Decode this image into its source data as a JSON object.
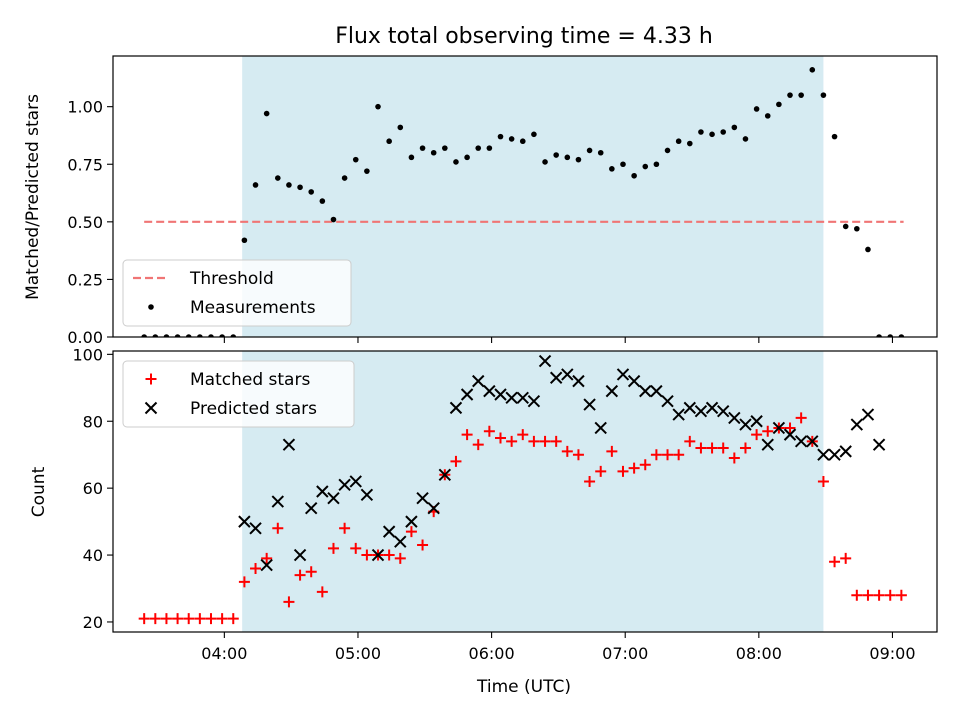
{
  "chart_data": [
    {
      "type": "scatter",
      "title": "Flux total observing time = 4.33 h",
      "xlabel": "",
      "ylabel": "Matched/Predicted stars",
      "ylim": [
        0,
        1.22
      ],
      "xlim": [
        "03:10",
        "09:20"
      ],
      "yticks": [
        "0.00",
        "0.25",
        "0.50",
        "0.75",
        "1.00"
      ],
      "shaded_interval": [
        "04:08",
        "08:29"
      ],
      "grid": false,
      "legend_position": "lower-left",
      "series": [
        {
          "name": "Threshold",
          "style": "dashed-line",
          "color": "#f07575",
          "x": [
            "03:24",
            "09:05"
          ],
          "values": [
            0.5,
            0.5
          ]
        },
        {
          "name": "Measurements",
          "style": "dot",
          "color": "#000000",
          "x": [
            "03:24",
            "03:29",
            "03:34",
            "03:39",
            "03:44",
            "03:49",
            "03:54",
            "03:59",
            "04:04",
            "04:09",
            "04:14",
            "04:19",
            "04:24",
            "04:29",
            "04:34",
            "04:39",
            "04:44",
            "04:49",
            "04:54",
            "04:59",
            "05:04",
            "05:09",
            "05:14",
            "05:19",
            "05:24",
            "05:29",
            "05:34",
            "05:39",
            "05:44",
            "05:49",
            "05:54",
            "05:59",
            "06:04",
            "06:09",
            "06:14",
            "06:19",
            "06:24",
            "06:29",
            "06:34",
            "06:39",
            "06:44",
            "06:49",
            "06:54",
            "06:59",
            "07:04",
            "07:09",
            "07:14",
            "07:19",
            "07:24",
            "07:29",
            "07:34",
            "07:39",
            "07:44",
            "07:49",
            "07:54",
            "07:59",
            "08:04",
            "08:09",
            "08:14",
            "08:19",
            "08:24",
            "08:29",
            "08:34",
            "08:39",
            "08:44",
            "08:49",
            "08:54",
            "08:59",
            "09:04"
          ],
          "values": [
            0,
            0,
            0,
            0,
            0,
            0,
            0,
            0,
            0,
            0.42,
            0.66,
            0.97,
            0.69,
            0.66,
            0.65,
            0.63,
            0.59,
            0.51,
            0.69,
            0.77,
            0.72,
            1.0,
            0.85,
            0.91,
            0.78,
            0.82,
            0.8,
            0.82,
            0.76,
            0.78,
            0.82,
            0.82,
            0.87,
            0.86,
            0.85,
            0.88,
            0.76,
            0.79,
            0.78,
            0.77,
            0.81,
            0.8,
            0.73,
            0.75,
            0.7,
            0.74,
            0.75,
            0.81,
            0.85,
            0.84,
            0.89,
            0.88,
            0.89,
            0.91,
            0.86,
            0.99,
            0.96,
            1.01,
            1.05,
            1.05,
            1.16,
            1.05,
            0.87,
            0.48,
            0.47,
            0.38,
            0,
            0,
            0
          ]
        }
      ]
    },
    {
      "type": "scatter",
      "title": "",
      "xlabel": "Time (UTC)",
      "ylabel": "Count",
      "ylim": [
        17,
        101
      ],
      "xlim": [
        "03:10",
        "09:20"
      ],
      "xticks": [
        "04:00",
        "05:00",
        "06:00",
        "07:00",
        "08:00",
        "09:00"
      ],
      "yticks": [
        "20",
        "40",
        "60",
        "80",
        "100"
      ],
      "shaded_interval": [
        "04:08",
        "08:29"
      ],
      "grid": false,
      "legend_position": "upper-left",
      "series": [
        {
          "name": "Matched stars",
          "style": "plus",
          "color": "#ff0000",
          "x": [
            "03:24",
            "03:29",
            "03:34",
            "03:39",
            "03:44",
            "03:49",
            "03:54",
            "03:59",
            "04:04",
            "04:09",
            "04:14",
            "04:19",
            "04:24",
            "04:29",
            "04:34",
            "04:39",
            "04:44",
            "04:49",
            "04:54",
            "04:59",
            "05:04",
            "05:09",
            "05:14",
            "05:19",
            "05:24",
            "05:29",
            "05:34",
            "05:39",
            "05:44",
            "05:49",
            "05:54",
            "05:59",
            "06:04",
            "06:09",
            "06:14",
            "06:19",
            "06:24",
            "06:29",
            "06:34",
            "06:39",
            "06:44",
            "06:49",
            "06:54",
            "06:59",
            "07:04",
            "07:09",
            "07:14",
            "07:19",
            "07:24",
            "07:29",
            "07:34",
            "07:39",
            "07:44",
            "07:49",
            "07:54",
            "07:59",
            "08:04",
            "08:09",
            "08:14",
            "08:19",
            "08:24",
            "08:29",
            "08:34",
            "08:39",
            "08:44",
            "08:49",
            "08:54",
            "08:59",
            "09:04"
          ],
          "values": [
            21,
            21,
            21,
            21,
            21,
            21,
            21,
            21,
            21,
            32,
            36,
            39,
            48,
            26,
            34,
            35,
            29,
            42,
            48,
            42,
            40,
            40,
            40,
            39,
            47,
            43,
            53,
            64,
            68,
            76,
            73,
            77,
            75,
            74,
            76,
            74,
            74,
            74,
            71,
            70,
            62,
            65,
            71,
            65,
            66,
            67,
            70,
            70,
            70,
            74,
            72,
            72,
            72,
            69,
            72,
            76,
            77,
            78,
            78,
            81,
            74,
            62,
            38,
            39,
            28,
            28,
            28,
            28,
            28
          ]
        },
        {
          "name": "Predicted stars",
          "style": "x",
          "color": "#000000",
          "x": [
            "04:09",
            "04:14",
            "04:19",
            "04:24",
            "04:29",
            "04:34",
            "04:39",
            "04:44",
            "04:49",
            "04:54",
            "04:59",
            "05:04",
            "05:09",
            "05:14",
            "05:19",
            "05:24",
            "05:29",
            "05:34",
            "05:39",
            "05:44",
            "05:49",
            "05:54",
            "05:59",
            "06:04",
            "06:09",
            "06:14",
            "06:19",
            "06:24",
            "06:29",
            "06:34",
            "06:39",
            "06:44",
            "06:49",
            "06:54",
            "06:59",
            "07:04",
            "07:09",
            "07:14",
            "07:19",
            "07:24",
            "07:29",
            "07:34",
            "07:39",
            "07:44",
            "07:49",
            "07:54",
            "07:59",
            "08:04",
            "08:09",
            "08:14",
            "08:19",
            "08:24",
            "08:29",
            "08:34",
            "08:39",
            "08:44",
            "08:49"
          ],
          "values": [
            50,
            48,
            37,
            56,
            73,
            40,
            54,
            59,
            57,
            61,
            62,
            58,
            40,
            47,
            44,
            50,
            57,
            54,
            64,
            84,
            88,
            92,
            89,
            88,
            87,
            87,
            86,
            98,
            93,
            94,
            92,
            85,
            78,
            89,
            94,
            92,
            89,
            89,
            86,
            82,
            84,
            83,
            84,
            83,
            81,
            79,
            80,
            73,
            78,
            76,
            74,
            74,
            70,
            70,
            71,
            79,
            82
          ]
        }
      ],
      "predicted_tail": {
        "x": [
          "08:54"
        ],
        "values": [
          73
        ]
      }
    }
  ]
}
